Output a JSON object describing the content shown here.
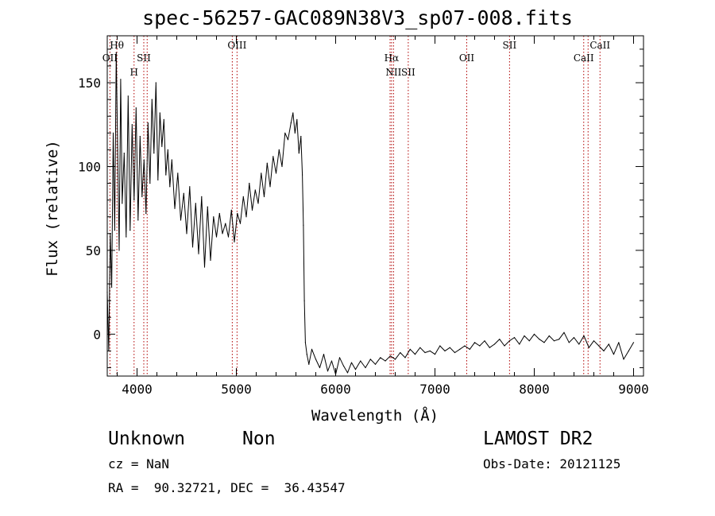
{
  "header": {
    "title": "spec-56257-GAC089N38V3_sp07-008.fits"
  },
  "footer": {
    "class_label": "Unknown",
    "subclass_label": "Non",
    "survey_label": "LAMOST DR2",
    "cz_label": "cz = NaN",
    "obs_date_label": "Obs-Date: 20121125",
    "coords_label": "RA =  90.32721, DEC =  36.43547"
  },
  "colors": {
    "spectrum": "#000000",
    "line_marker": "#b00000",
    "axes": "#000000"
  },
  "chart_data": {
    "type": "line",
    "title": "spec-56257-GAC089N38V3_sp07-008.fits",
    "xlabel": "Wavelength (Å)",
    "ylabel": "Flux (relative)",
    "xlim": [
      3700,
      9100
    ],
    "ylim": [
      -25,
      178
    ],
    "grid": false,
    "x_ticks": [
      4000,
      5000,
      6000,
      7000,
      8000,
      9000
    ],
    "x_tick_labels": [
      "4000",
      "5000",
      "6000",
      "7000",
      "8000",
      "9000"
    ],
    "y_ticks": [
      0,
      50,
      100,
      150
    ],
    "y_tick_labels": [
      "0",
      "50",
      "100",
      "150"
    ],
    "series": [
      {
        "x": [
          3700,
          3715,
          3730,
          3745,
          3760,
          3775,
          3790,
          3805,
          3820,
          3835,
          3850,
          3870,
          3890,
          3910,
          3930,
          3950,
          3970,
          3990,
          4010,
          4030,
          4050,
          4070,
          4090,
          4110,
          4130,
          4150,
          4170,
          4190,
          4210,
          4230,
          4250,
          4270,
          4290,
          4310,
          4330,
          4350,
          4380,
          4410,
          4440,
          4470,
          4500,
          4530,
          4560,
          4590,
          4620,
          4650,
          4680,
          4710,
          4740,
          4770,
          4800,
          4830,
          4860,
          4890,
          4920,
          4950,
          4980,
          5010,
          5040,
          5070,
          5100,
          5130,
          5160,
          5190,
          5220,
          5250,
          5280,
          5310,
          5340,
          5370,
          5400,
          5430,
          5460,
          5490,
          5520,
          5550,
          5570,
          5590,
          5610,
          5630,
          5650,
          5665,
          5675,
          5685,
          5695,
          5710,
          5730,
          5760,
          5800,
          5840,
          5880,
          5920,
          5960,
          6000,
          6040,
          6080,
          6120,
          6160,
          6200,
          6250,
          6300,
          6350,
          6400,
          6450,
          6500,
          6550,
          6600,
          6650,
          6700,
          6750,
          6800,
          6850,
          6900,
          6950,
          7000,
          7050,
          7100,
          7150,
          7200,
          7250,
          7300,
          7350,
          7400,
          7450,
          7500,
          7550,
          7600,
          7650,
          7700,
          7750,
          7800,
          7850,
          7900,
          7950,
          8000,
          8050,
          8100,
          8150,
          8200,
          8250,
          8300,
          8350,
          8400,
          8450,
          8500,
          8550,
          8600,
          8650,
          8700,
          8750,
          8800,
          8850,
          8900,
          8950,
          9000
        ],
        "values": [
          25,
          -10,
          60,
          28,
          120,
          62,
          168,
          110,
          50,
          152,
          78,
          108,
          58,
          142,
          62,
          125,
          80,
          135,
          68,
          118,
          82,
          104,
          72,
          126,
          90,
          140,
          108,
          150,
          92,
          132,
          112,
          128,
          95,
          110,
          88,
          104,
          75,
          96,
          68,
          84,
          60,
          88,
          52,
          78,
          48,
          82,
          40,
          76,
          44,
          70,
          58,
          72,
          60,
          66,
          58,
          74,
          55,
          72,
          66,
          82,
          70,
          90,
          74,
          86,
          78,
          96,
          82,
          102,
          88,
          106,
          96,
          110,
          100,
          120,
          116,
          126,
          132,
          120,
          128,
          108,
          118,
          95,
          65,
          20,
          -5,
          -12,
          -18,
          -9,
          -15,
          -20,
          -12,
          -22,
          -16,
          -24,
          -14,
          -19,
          -23,
          -17,
          -21,
          -16,
          -20,
          -15,
          -18,
          -14,
          -16,
          -13,
          -15,
          -11,
          -14,
          -9,
          -12,
          -8,
          -11,
          -10,
          -12,
          -7,
          -10,
          -8,
          -11,
          -9,
          -7,
          -9,
          -5,
          -7,
          -4,
          -8,
          -6,
          -3,
          -7,
          -4,
          -2,
          -6,
          -1,
          -4,
          0,
          -3,
          -5,
          -1,
          -4,
          -3,
          1,
          -5,
          -2,
          -6,
          -1,
          -8,
          -4,
          -7,
          -10,
          -6,
          -12,
          -5,
          -15,
          -10,
          -5
        ]
      }
    ],
    "line_markers": [
      {
        "x": 3727,
        "label": "OII",
        "row": 2
      },
      {
        "x": 3797,
        "label": "Hθ",
        "row": 1
      },
      {
        "x": 3970,
        "label": "H",
        "row": 3
      },
      {
        "x": 4068,
        "label": "SII",
        "row": 2
      },
      {
        "x": 4102,
        "label": "",
        "row": 0
      },
      {
        "x": 4959,
        "label": "",
        "row": 0
      },
      {
        "x": 5007,
        "label": "OIII",
        "row": 1
      },
      {
        "x": 6548,
        "label": "",
        "row": 0
      },
      {
        "x": 6563,
        "label": "Hα",
        "row": 2
      },
      {
        "x": 6583,
        "label": "NII",
        "row": 3
      },
      {
        "x": 6731,
        "label": "SII",
        "row": 3
      },
      {
        "x": 7320,
        "label": "OII",
        "row": 2
      },
      {
        "x": 7751,
        "label": "SII",
        "row": 1
      },
      {
        "x": 8498,
        "label": "CaII",
        "row": 2
      },
      {
        "x": 8542,
        "label": "",
        "row": 0
      },
      {
        "x": 8662,
        "label": "CaII",
        "row": 1
      }
    ]
  }
}
